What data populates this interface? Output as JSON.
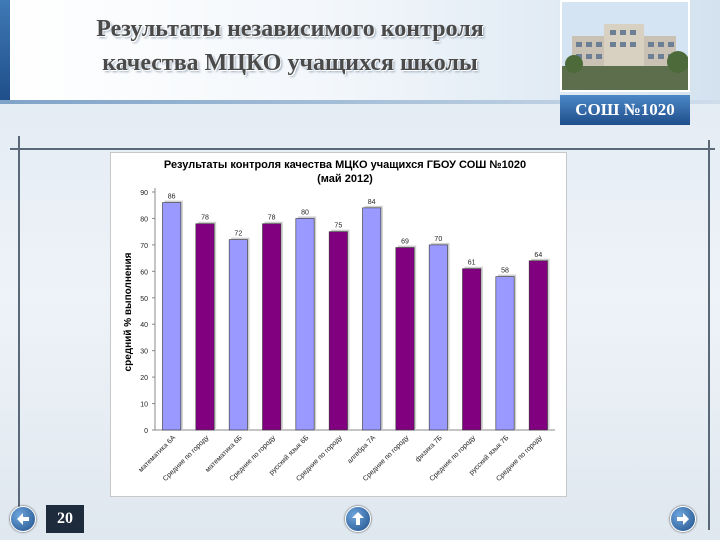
{
  "slide": {
    "title_line1": "Результаты независимого контроля",
    "title_line2": "качества МЦКО учащихся школы",
    "badge": "СОШ №1020",
    "page_number": "20",
    "accent_color": "#1f4e8c"
  },
  "nav": {
    "prev_icon": "arrow-left-icon",
    "up_icon": "arrow-up-icon",
    "next_icon": "arrow-right-icon"
  },
  "chart_data": {
    "type": "bar",
    "title_line1": "Результаты контроля качества МЦКО учащихся ГБОУ СОШ №1020",
    "title_line2": "(май 2012)",
    "xlabel": "",
    "ylabel": "средний % выполнения",
    "ylim": [
      0,
      90
    ],
    "yticks": [
      0,
      10,
      20,
      30,
      40,
      50,
      60,
      70,
      80,
      90
    ],
    "grid": false,
    "categories": [
      "математика 6А",
      "Средние по городу",
      "математика 6Б",
      "Средние по городу",
      "русский язык 6Б",
      "Средние по городу",
      "алгебра 7А",
      "Средние по городу",
      "физика 7Б",
      "Средние по городу",
      "русский язык 7Б",
      "Средние по городу"
    ],
    "values": [
      86,
      78,
      72,
      78,
      80,
      75,
      84,
      69,
      70,
      61,
      58,
      64
    ],
    "bar_colors": [
      "#9999ff",
      "#800080"
    ]
  }
}
